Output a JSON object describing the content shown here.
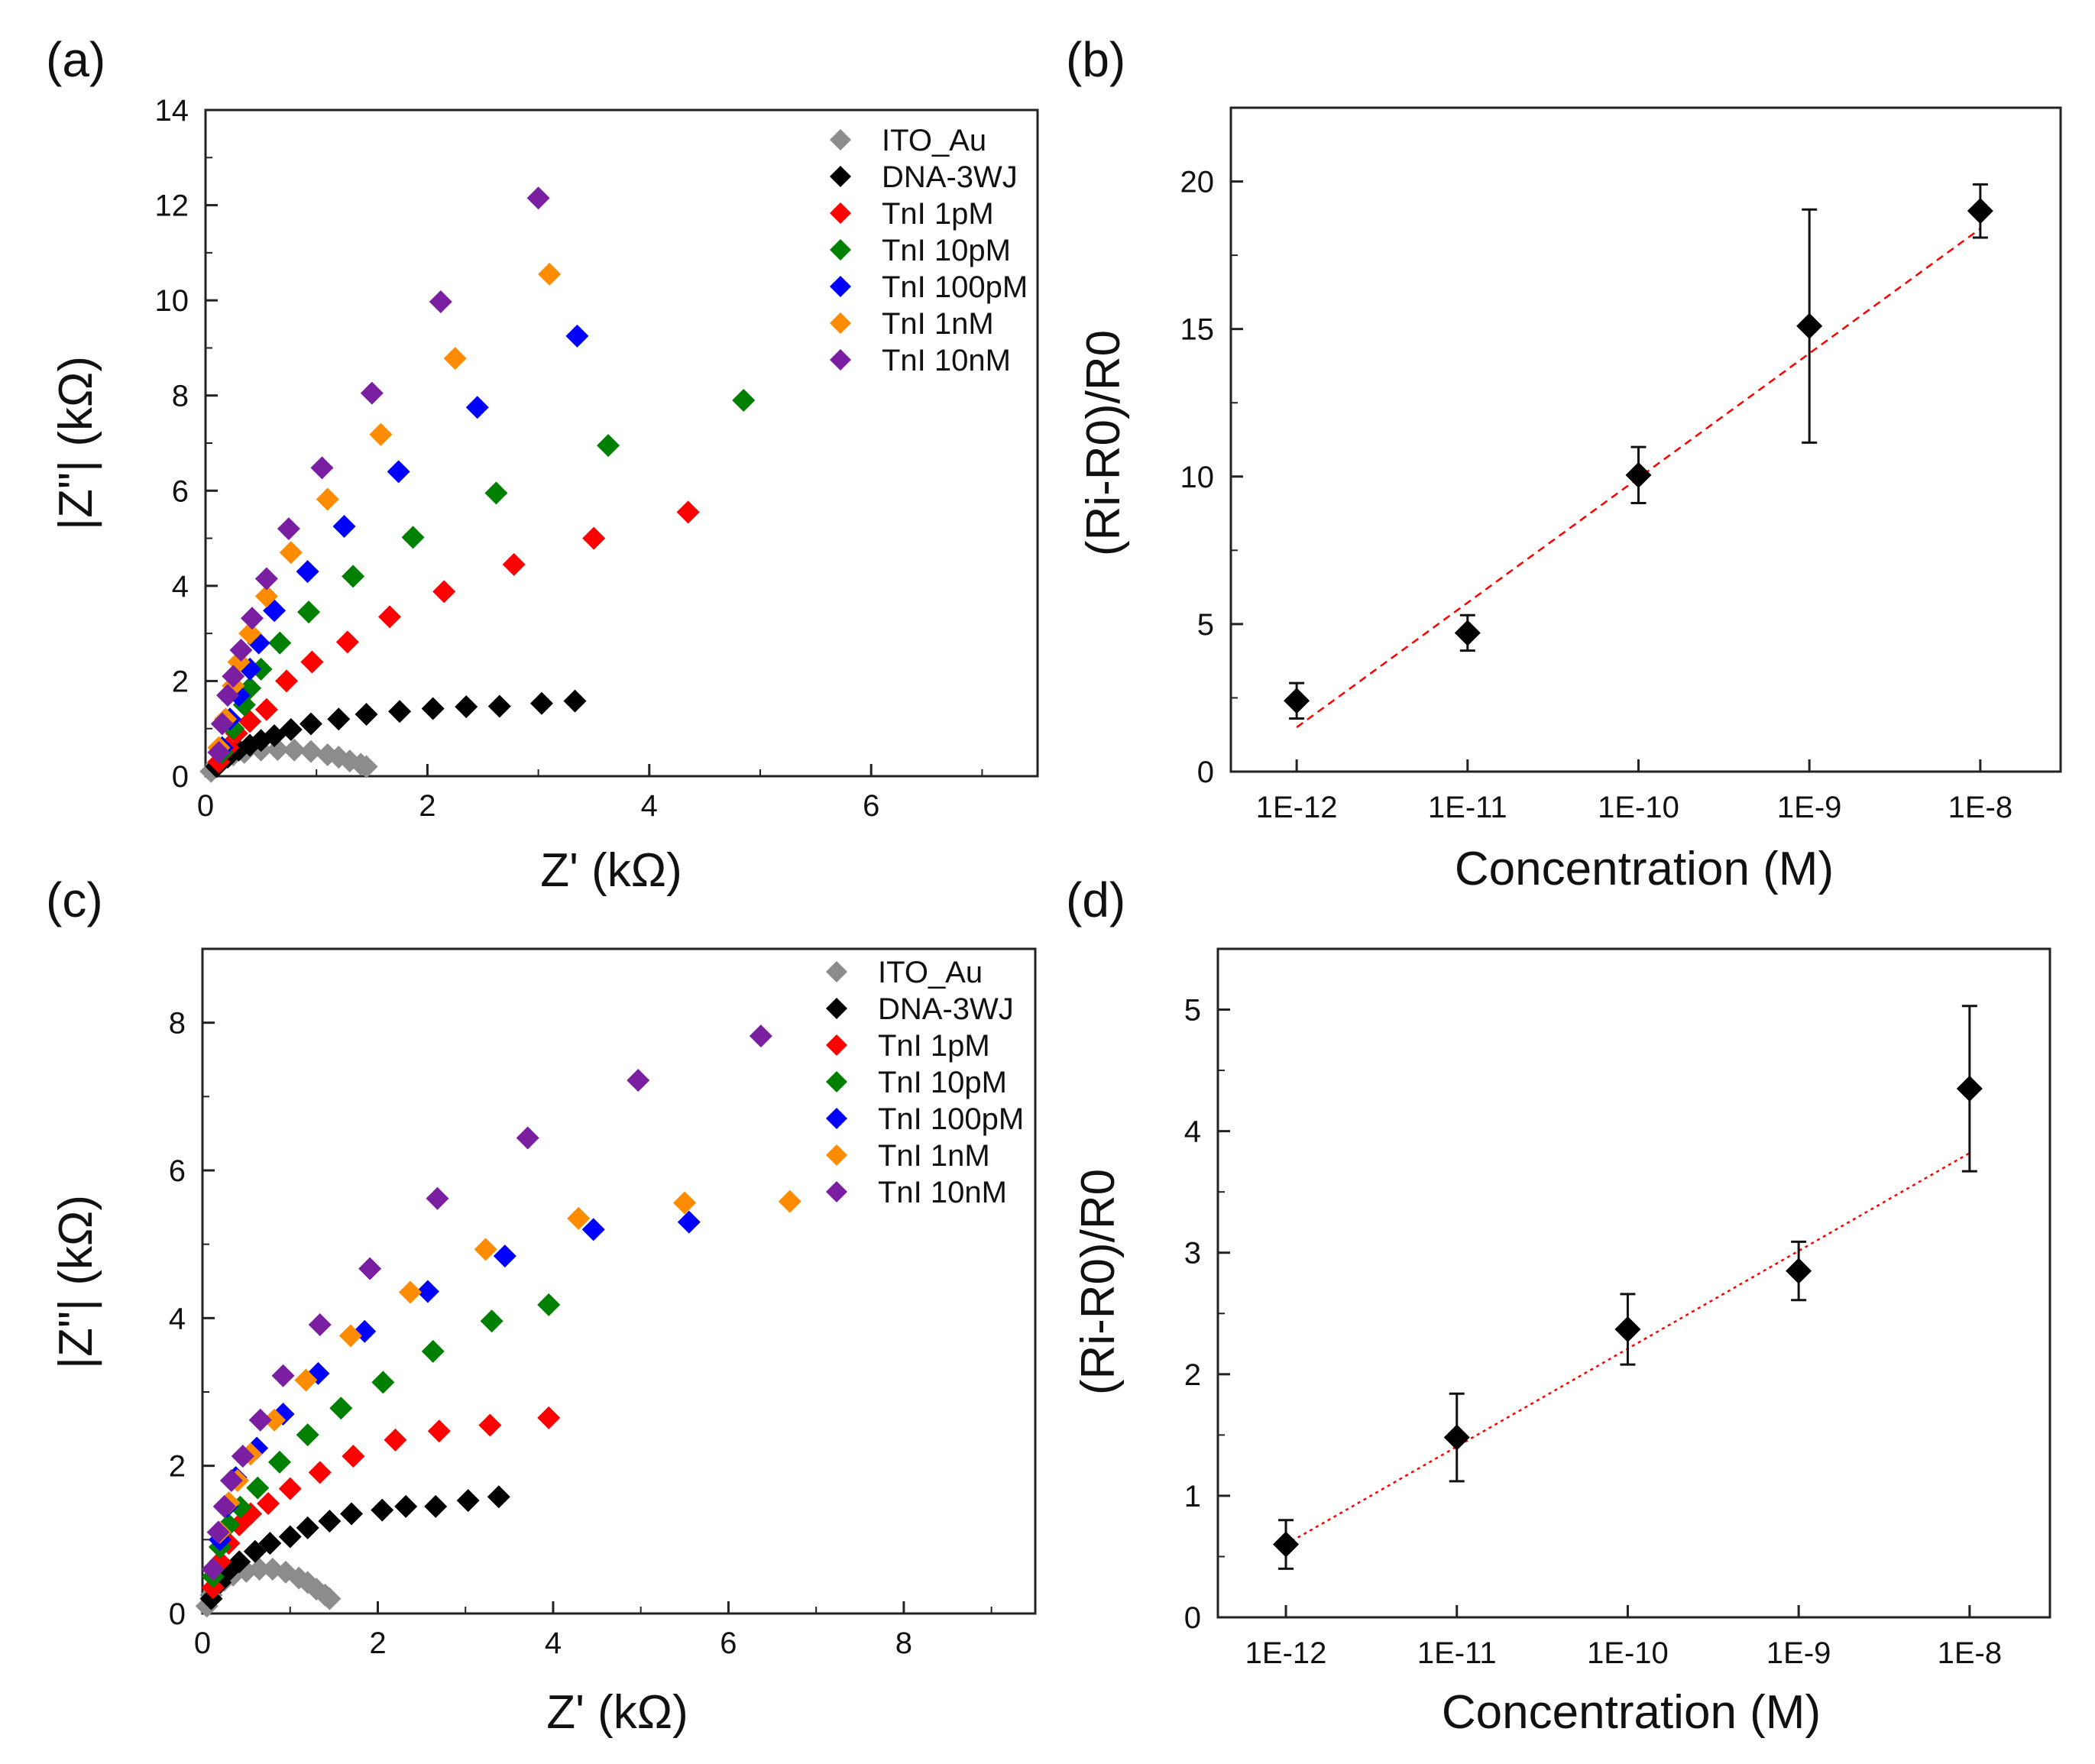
{
  "chart_data": [
    {
      "panel": "(a)",
      "type": "scatter",
      "xlabel": "Z' (kΩ)",
      "ylabel": "|Z\"| (kΩ)",
      "xlim": [
        0,
        7.5
      ],
      "ylim": [
        0,
        14
      ],
      "xticks": [
        0,
        2,
        4,
        6
      ],
      "yticks": [
        0,
        2,
        4,
        6,
        8,
        10,
        12,
        14
      ],
      "legend_position": "top-right",
      "series": [
        {
          "name": "ITO_Au",
          "color": "#8c8c8c",
          "points": [
            [
              0.05,
              0.1
            ],
            [
              0.1,
              0.25
            ],
            [
              0.15,
              0.35
            ],
            [
              0.25,
              0.45
            ],
            [
              0.35,
              0.5
            ],
            [
              0.5,
              0.55
            ],
            [
              0.65,
              0.56
            ],
            [
              0.8,
              0.55
            ],
            [
              0.95,
              0.52
            ],
            [
              1.1,
              0.45
            ],
            [
              1.2,
              0.4
            ],
            [
              1.3,
              0.32
            ],
            [
              1.4,
              0.25
            ],
            [
              1.45,
              0.2
            ]
          ]
        },
        {
          "name": "DNA-3WJ",
          "color": "#000000",
          "points": [
            [
              0.1,
              0.2
            ],
            [
              0.2,
              0.4
            ],
            [
              0.3,
              0.55
            ],
            [
              0.4,
              0.65
            ],
            [
              0.5,
              0.75
            ],
            [
              0.62,
              0.85
            ],
            [
              0.77,
              0.98
            ],
            [
              0.95,
              1.1
            ],
            [
              1.2,
              1.2
            ],
            [
              1.45,
              1.3
            ],
            [
              1.75,
              1.36
            ],
            [
              2.05,
              1.42
            ],
            [
              2.35,
              1.46
            ],
            [
              2.65,
              1.47
            ],
            [
              3.03,
              1.53
            ],
            [
              3.33,
              1.58
            ]
          ]
        },
        {
          "name": "TnI 1pM",
          "color": "#ff0000",
          "points": [
            [
              0.12,
              0.3
            ],
            [
              0.2,
              0.6
            ],
            [
              0.28,
              0.9
            ],
            [
              0.4,
              1.15
            ],
            [
              0.55,
              1.4
            ],
            [
              0.73,
              2.0
            ],
            [
              0.96,
              2.4
            ],
            [
              1.28,
              2.82
            ],
            [
              1.66,
              3.35
            ],
            [
              2.15,
              3.88
            ],
            [
              2.78,
              4.45
            ],
            [
              3.5,
              5.0
            ],
            [
              4.35,
              5.55
            ]
          ]
        },
        {
          "name": "TnI 10pM",
          "color": "#008000",
          "points": [
            [
              0.15,
              0.5
            ],
            [
              0.25,
              1.0
            ],
            [
              0.35,
              1.5
            ],
            [
              0.4,
              1.85
            ],
            [
              0.5,
              2.25
            ],
            [
              0.67,
              2.8
            ],
            [
              0.93,
              3.45
            ],
            [
              1.33,
              4.2
            ],
            [
              1.87,
              5.02
            ],
            [
              2.62,
              5.95
            ],
            [
              3.63,
              6.95
            ],
            [
              4.85,
              7.9
            ]
          ]
        },
        {
          "name": "TnI 100pM",
          "color": "#0000ff",
          "points": [
            [
              0.15,
              0.6
            ],
            [
              0.22,
              1.2
            ],
            [
              0.3,
              1.7
            ],
            [
              0.4,
              2.25
            ],
            [
              0.48,
              2.8
            ],
            [
              0.62,
              3.48
            ],
            [
              0.92,
              4.3
            ],
            [
              1.25,
              5.25
            ],
            [
              1.74,
              6.4
            ],
            [
              2.45,
              7.75
            ],
            [
              3.35,
              9.25
            ]
          ]
        },
        {
          "name": "TnI 1nM",
          "color": "#ff8c00",
          "points": [
            [
              0.12,
              0.6
            ],
            [
              0.18,
              1.2
            ],
            [
              0.25,
              1.9
            ],
            [
              0.3,
              2.4
            ],
            [
              0.4,
              3.0
            ],
            [
              0.55,
              3.78
            ],
            [
              0.77,
              4.7
            ],
            [
              1.1,
              5.82
            ],
            [
              1.58,
              7.18
            ],
            [
              2.25,
              8.78
            ],
            [
              3.1,
              10.55
            ]
          ]
        },
        {
          "name": "TnI 10nM",
          "color": "#7b1fa2",
          "points": [
            [
              0.12,
              0.5
            ],
            [
              0.15,
              1.1
            ],
            [
              0.2,
              1.7
            ],
            [
              0.25,
              2.1
            ],
            [
              0.32,
              2.65
            ],
            [
              0.42,
              3.32
            ],
            [
              0.55,
              4.15
            ],
            [
              0.75,
              5.2
            ],
            [
              1.05,
              6.48
            ],
            [
              1.5,
              8.05
            ],
            [
              2.12,
              9.97
            ],
            [
              3.0,
              12.15
            ]
          ]
        }
      ]
    },
    {
      "panel": "(b)",
      "type": "scatter",
      "xlabel": "Concentration (M)",
      "ylabel": "(Ri-R0)/R0",
      "categories": [
        "1E-12",
        "1E-11",
        "1E-10",
        "1E-9",
        "1E-8"
      ],
      "values": [
        2.4,
        4.7,
        10.05,
        15.1,
        19.0
      ],
      "errors": [
        0.6,
        0.6,
        0.95,
        3.95,
        0.9
      ],
      "fit": {
        "start": 1.5,
        "end": 18.4,
        "color": "#ff0000",
        "style": "dashed"
      },
      "ylim": [
        0,
        22.5
      ],
      "yticks": [
        0,
        5,
        10,
        15,
        20
      ]
    },
    {
      "panel": "(c)",
      "type": "scatter",
      "xlabel": "Z' (kΩ)",
      "ylabel": "|Z\"| (kΩ)",
      "xlim": [
        0,
        9.5
      ],
      "ylim": [
        0,
        9
      ],
      "xticks": [
        0,
        2,
        4,
        6,
        8
      ],
      "yticks": [
        0,
        2,
        4,
        6,
        8
      ],
      "legend_position": "top-right",
      "series": [
        {
          "name": "ITO_Au",
          "color": "#8c8c8c",
          "points": [
            [
              0.05,
              0.1
            ],
            [
              0.1,
              0.25
            ],
            [
              0.15,
              0.35
            ],
            [
              0.25,
              0.45
            ],
            [
              0.35,
              0.52
            ],
            [
              0.5,
              0.57
            ],
            [
              0.65,
              0.6
            ],
            [
              0.8,
              0.6
            ],
            [
              0.95,
              0.56
            ],
            [
              1.1,
              0.48
            ],
            [
              1.2,
              0.42
            ],
            [
              1.3,
              0.33
            ],
            [
              1.4,
              0.25
            ],
            [
              1.45,
              0.2
            ]
          ]
        },
        {
          "name": "DNA-3WJ",
          "color": "#000000",
          "points": [
            [
              0.1,
              0.2
            ],
            [
              0.2,
              0.42
            ],
            [
              0.3,
              0.58
            ],
            [
              0.42,
              0.7
            ],
            [
              0.6,
              0.84
            ],
            [
              0.77,
              0.95
            ],
            [
              1.0,
              1.04
            ],
            [
              1.2,
              1.16
            ],
            [
              1.45,
              1.25
            ],
            [
              1.7,
              1.35
            ],
            [
              2.05,
              1.4
            ],
            [
              2.32,
              1.45
            ],
            [
              2.66,
              1.45
            ],
            [
              3.03,
              1.53
            ],
            [
              3.38,
              1.58
            ]
          ]
        },
        {
          "name": "TnI 1pM",
          "color": "#ff0000",
          "points": [
            [
              0.12,
              0.35
            ],
            [
              0.2,
              0.7
            ],
            [
              0.3,
              0.95
            ],
            [
              0.42,
              1.2
            ],
            [
              0.55,
              1.35
            ],
            [
              0.75,
              1.49
            ],
            [
              1.0,
              1.69
            ],
            [
              1.34,
              1.91
            ],
            [
              1.72,
              2.13
            ],
            [
              2.2,
              2.35
            ],
            [
              2.7,
              2.47
            ],
            [
              3.28,
              2.55
            ],
            [
              3.95,
              2.65
            ]
          ]
        },
        {
          "name": "TnI 10pM",
          "color": "#008000",
          "points": [
            [
              0.12,
              0.5
            ],
            [
              0.2,
              0.9
            ],
            [
              0.3,
              1.2
            ],
            [
              0.43,
              1.44
            ],
            [
              0.63,
              1.7
            ],
            [
              0.88,
              2.05
            ],
            [
              1.2,
              2.42
            ],
            [
              1.58,
              2.78
            ],
            [
              2.06,
              3.13
            ],
            [
              2.63,
              3.55
            ],
            [
              3.3,
              3.96
            ],
            [
              3.95,
              4.18
            ]
          ]
        },
        {
          "name": "TnI 100pM",
          "color": "#0000ff",
          "points": [
            [
              0.12,
              0.6
            ],
            [
              0.2,
              1.0
            ],
            [
              0.28,
              1.45
            ],
            [
              0.38,
              1.84
            ],
            [
              0.62,
              2.24
            ],
            [
              0.92,
              2.7
            ],
            [
              1.32,
              3.25
            ],
            [
              1.85,
              3.82
            ],
            [
              2.57,
              4.36
            ],
            [
              3.45,
              4.84
            ],
            [
              4.46,
              5.2
            ],
            [
              5.55,
              5.3
            ]
          ]
        },
        {
          "name": "TnI 1nM",
          "color": "#ff8c00",
          "points": [
            [
              0.12,
              0.6
            ],
            [
              0.2,
              1.1
            ],
            [
              0.3,
              1.5
            ],
            [
              0.4,
              1.8
            ],
            [
              0.55,
              2.16
            ],
            [
              0.82,
              2.62
            ],
            [
              1.18,
              3.16
            ],
            [
              1.69,
              3.76
            ],
            [
              2.37,
              4.35
            ],
            [
              3.23,
              4.93
            ],
            [
              4.29,
              5.35
            ],
            [
              5.5,
              5.56
            ],
            [
              6.7,
              5.58
            ]
          ]
        },
        {
          "name": "TnI 10nM",
          "color": "#7b1fa2",
          "points": [
            [
              0.12,
              0.6
            ],
            [
              0.18,
              1.1
            ],
            [
              0.25,
              1.45
            ],
            [
              0.33,
              1.8
            ],
            [
              0.46,
              2.13
            ],
            [
              0.66,
              2.62
            ],
            [
              0.92,
              3.22
            ],
            [
              1.34,
              3.91
            ],
            [
              1.91,
              4.67
            ],
            [
              2.68,
              5.62
            ],
            [
              3.71,
              6.44
            ],
            [
              4.97,
              7.22
            ],
            [
              6.37,
              7.82
            ]
          ]
        }
      ]
    },
    {
      "panel": "(d)",
      "type": "scatter",
      "xlabel": "Concentration (M)",
      "ylabel": "(Ri-R0)/R0",
      "categories": [
        "1E-12",
        "1E-11",
        "1E-10",
        "1E-9",
        "1E-8"
      ],
      "values": [
        0.6,
        1.48,
        2.37,
        2.85,
        4.35
      ],
      "errors": [
        0.2,
        0.36,
        0.29,
        0.24,
        0.68
      ],
      "fit": {
        "start": 0.6,
        "end": 3.82,
        "color": "#ff0000",
        "style": "dotted"
      },
      "ylim": [
        0,
        5.5
      ],
      "yticks": [
        0,
        1,
        2,
        3,
        4,
        5
      ]
    }
  ]
}
